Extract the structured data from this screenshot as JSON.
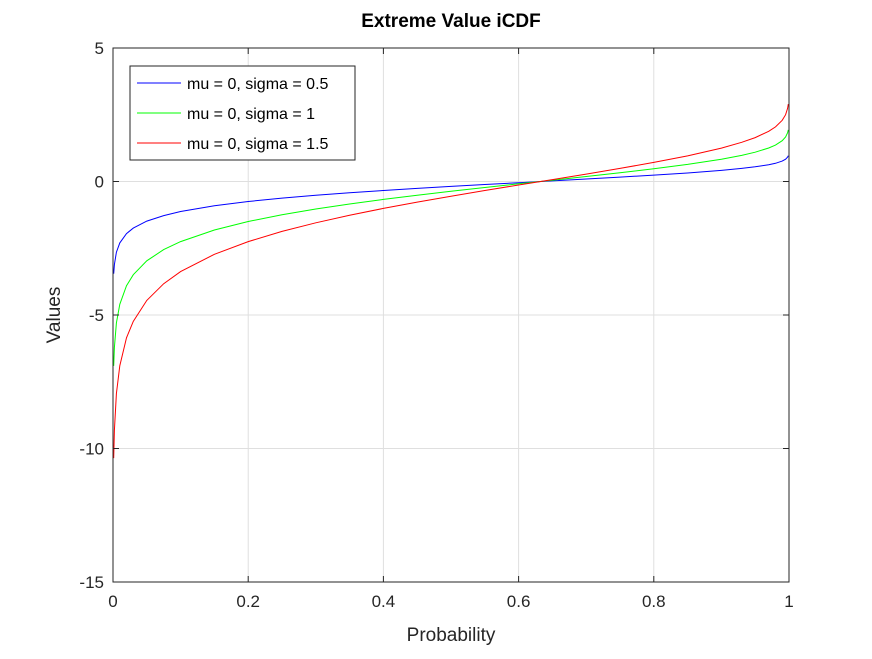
{
  "chart_data": {
    "type": "line",
    "title": "Extreme Value iCDF",
    "xlabel": "Probability",
    "ylabel": "Values",
    "xlim": [
      0,
      1
    ],
    "ylim": [
      -15,
      5
    ],
    "xticks": [
      "0",
      "0.2",
      "0.4",
      "0.6",
      "0.8",
      "1"
    ],
    "xtick_values": [
      0,
      0.2,
      0.4,
      0.6,
      0.8,
      1
    ],
    "yticks": [
      "5",
      "0",
      "-5",
      "-10",
      "-15"
    ],
    "ytick_values": [
      5,
      0,
      -5,
      -10,
      -15
    ],
    "grid": true,
    "legend_position": "top-left",
    "x": [
      0.001,
      0.002,
      0.005,
      0.01,
      0.02,
      0.03,
      0.05,
      0.075,
      0.1,
      0.15,
      0.2,
      0.25,
      0.3,
      0.35,
      0.4,
      0.45,
      0.5,
      0.55,
      0.6,
      0.65,
      0.7,
      0.75,
      0.8,
      0.85,
      0.9,
      0.93,
      0.95,
      0.97,
      0.98,
      0.99,
      0.995,
      0.998,
      0.999
    ],
    "series": [
      {
        "name": "mu = 0, sigma = 0.5",
        "color": "#0000ff",
        "values": [
          -3.454,
          -3.107,
          -2.648,
          -2.3,
          -1.951,
          -1.746,
          -1.485,
          -1.276,
          -1.125,
          -0.909,
          -0.75,
          -0.623,
          -0.515,
          -0.421,
          -0.336,
          -0.257,
          -0.183,
          -0.113,
          -0.044,
          0.024,
          0.093,
          0.163,
          0.238,
          0.32,
          0.417,
          0.489,
          0.549,
          0.627,
          0.682,
          0.764,
          0.834,
          0.913,
          0.966
        ]
      },
      {
        "name": "mu = 0, sigma = 1",
        "color": "#00ff00",
        "values": [
          -6.907,
          -6.214,
          -5.296,
          -4.6,
          -3.902,
          -3.491,
          -2.97,
          -2.552,
          -2.25,
          -1.817,
          -1.5,
          -1.246,
          -1.031,
          -0.842,
          -0.672,
          -0.514,
          -0.367,
          -0.225,
          -0.087,
          0.049,
          0.186,
          0.327,
          0.476,
          0.64,
          0.834,
          0.978,
          1.097,
          1.255,
          1.364,
          1.527,
          1.667,
          1.827,
          1.933
        ]
      },
      {
        "name": "mu = 0, sigma = 1.5",
        "color": "#ff0000",
        "values": [
          -10.361,
          -9.32,
          -7.944,
          -6.9,
          -5.853,
          -5.237,
          -4.455,
          -3.827,
          -3.376,
          -2.726,
          -2.25,
          -1.869,
          -1.546,
          -1.263,
          -1.008,
          -0.772,
          -0.55,
          -0.338,
          -0.131,
          0.073,
          0.278,
          0.49,
          0.714,
          0.96,
          1.251,
          1.467,
          1.646,
          1.882,
          2.046,
          2.291,
          2.501,
          2.74,
          2.899
        ]
      }
    ]
  }
}
